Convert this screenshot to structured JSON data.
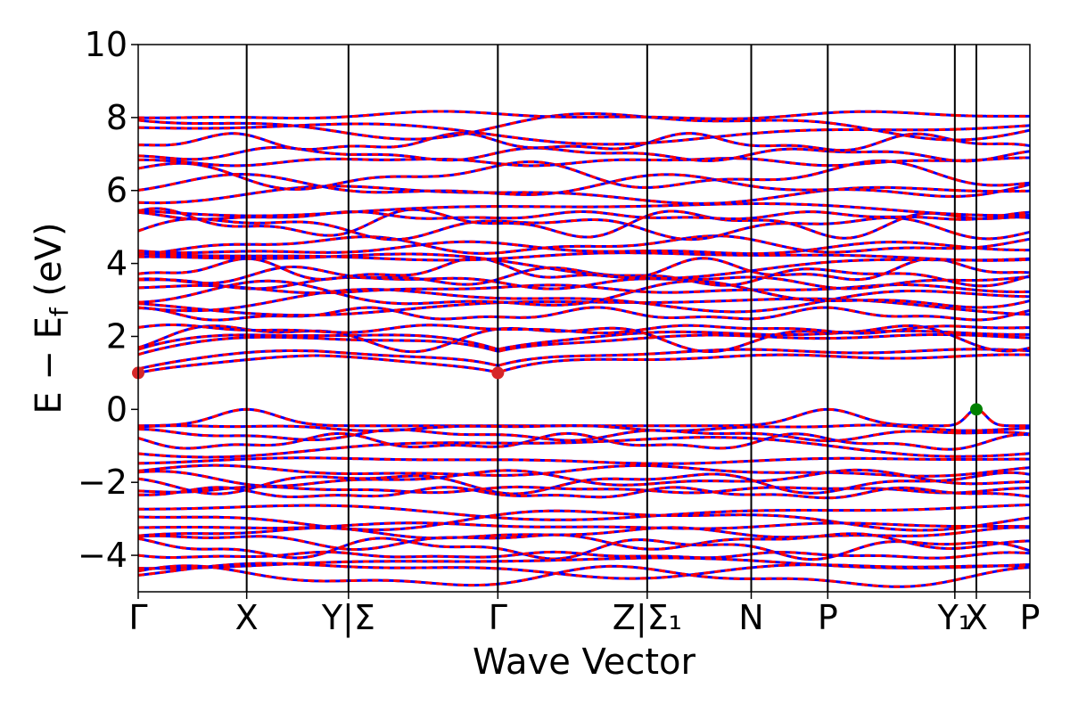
{
  "chart_data": {
    "type": "line",
    "title": "",
    "xlabel": "Wave Vector",
    "ylabel": "E − E_f (eV)",
    "ylabel_parts": {
      "main": "E − E",
      "sub": "f",
      "suffix": " (eV)"
    },
    "ylim": [
      -5,
      10
    ],
    "yticks": [
      -4,
      -2,
      0,
      2,
      4,
      6,
      8,
      10
    ],
    "ytick_labels": [
      "−4",
      "−2",
      "0",
      "2",
      "4",
      "6",
      "8",
      "10"
    ],
    "x_range": [
      0,
      12.0
    ],
    "kpoints": [
      {
        "x": 0.0,
        "label": "Γ"
      },
      {
        "x": 1.46,
        "label": "X"
      },
      {
        "x": 2.83,
        "label": "Y|Σ"
      },
      {
        "x": 4.84,
        "label": "Γ"
      },
      {
        "x": 6.85,
        "label": "Z|Σ₁"
      },
      {
        "x": 8.25,
        "label": "N"
      },
      {
        "x": 9.28,
        "label": "P"
      },
      {
        "x": 10.99,
        "label": "Y₁"
      },
      {
        "x": 11.28,
        "label": "X"
      },
      {
        "x": 12.0,
        "label": "P"
      }
    ],
    "segment_break": 10.99,
    "series_colors": {
      "spin_up": "#0000ff",
      "spin_down": "#ff0000"
    },
    "markers": [
      {
        "x": 0.0,
        "y": 1.0,
        "color": "#d62728"
      },
      {
        "x": 4.84,
        "y": 1.0,
        "color": "#d62728"
      },
      {
        "x": 11.28,
        "y": 0.0,
        "color": "#008000"
      }
    ],
    "bands": {
      "conduction_offsets": [
        1.0,
        1.15,
        1.55,
        1.65,
        2.0,
        2.2,
        2.6,
        2.85,
        3.0,
        3.1,
        3.3,
        3.5,
        3.65,
        3.8,
        4.0,
        4.2,
        4.4,
        4.5,
        5.0,
        5.1,
        5.3,
        5.5,
        5.9,
        6.1,
        6.4,
        6.8,
        7.0,
        7.3,
        7.6,
        7.8,
        8.05
      ],
      "valence_offsets": [
        0.0,
        -0.5,
        -0.7,
        -0.9,
        -1.0,
        -1.4,
        -1.7,
        -1.9,
        -2.0,
        -2.2,
        -2.3,
        -2.8,
        -3.0,
        -3.2,
        -3.4,
        -3.6,
        -3.8,
        -4.0,
        -4.2,
        -4.4,
        -4.6
      ]
    },
    "grid": false,
    "legend": "none"
  }
}
